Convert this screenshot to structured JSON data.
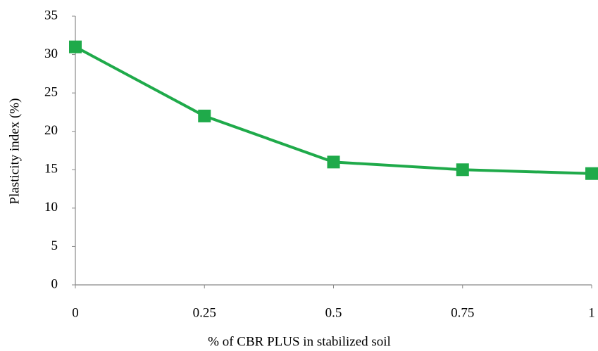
{
  "chart_data": {
    "type": "line",
    "x_label": "% of CBR PLUS in stabilized soil",
    "y_label": "Plasticity index (%)",
    "x": [
      0,
      0.25,
      0.5,
      0.75,
      1
    ],
    "values": [
      31,
      22,
      16,
      15,
      14.5
    ],
    "color": "#1faa4a",
    "xlim": [
      0,
      1
    ],
    "xticks": [
      0,
      0.25,
      0.5,
      0.75,
      1
    ],
    "ylim": [
      0,
      35
    ],
    "yticks": [
      0,
      5,
      10,
      15,
      20,
      25,
      30,
      35
    ],
    "grid": false
  }
}
